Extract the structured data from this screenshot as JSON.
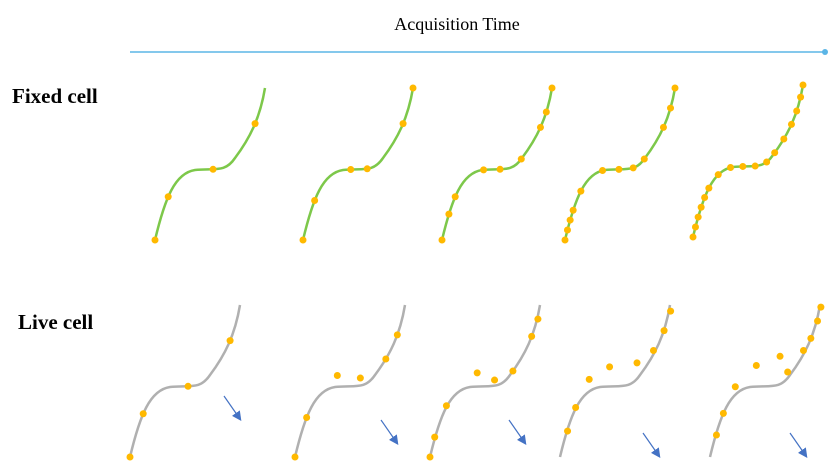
{
  "header": {
    "title": "Acquisition Time"
  },
  "rows": [
    {
      "label": "Fixed cell"
    },
    {
      "label": "Live cell"
    }
  ]
}
